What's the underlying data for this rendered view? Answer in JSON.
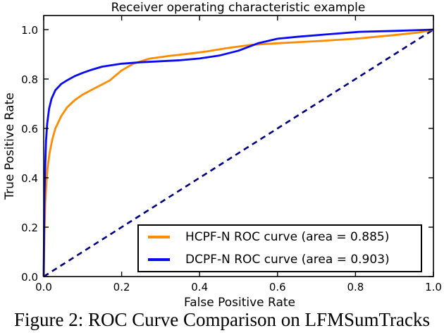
{
  "figure": {
    "caption": "Figure 2: ROC Curve Comparison on LFMSumTracks"
  },
  "chart_data": {
    "type": "line",
    "title": "Receiver operating characteristic example",
    "xlabel": "False Positive Rate",
    "ylabel": "True Positive Rate",
    "xlim": [
      0.0,
      1.0
    ],
    "ylim": [
      0.0,
      1.057
    ],
    "x_ticks": [
      "0.0",
      "0.2",
      "0.4",
      "0.6",
      "0.8",
      "1.0"
    ],
    "y_ticks": [
      "0.0",
      "0.2",
      "0.4",
      "0.6",
      "0.8",
      "1.0"
    ],
    "grid": false,
    "legend_position": "lower right",
    "axis_color": "#000000",
    "background": "#ffffff",
    "series": [
      {
        "name": "HCPF-N ROC curve (area = 0.885)",
        "area": 0.885,
        "color": "#ff8c00",
        "style": "solid",
        "x": [
          0,
          0.002,
          0.004,
          0.007,
          0.01,
          0.015,
          0.022,
          0.03,
          0.045,
          0.06,
          0.08,
          0.1,
          0.13,
          0.15,
          0.17,
          0.2,
          0.23,
          0.27,
          0.32,
          0.37,
          0.42,
          0.47,
          0.53,
          0.6,
          0.7,
          0.8,
          0.9,
          0.96,
          1.0
        ],
        "y": [
          0,
          0.18,
          0.3,
          0.38,
          0.44,
          0.5,
          0.555,
          0.6,
          0.65,
          0.685,
          0.715,
          0.737,
          0.762,
          0.778,
          0.795,
          0.835,
          0.862,
          0.882,
          0.893,
          0.902,
          0.912,
          0.925,
          0.938,
          0.945,
          0.953,
          0.963,
          0.978,
          0.988,
          1.0
        ]
      },
      {
        "name": "DCPF-N ROC curve (area = 0.903)",
        "area": 0.903,
        "color": "#0a0af2",
        "style": "solid",
        "x": [
          0,
          0.001,
          0.002,
          0.004,
          0.006,
          0.009,
          0.014,
          0.02,
          0.03,
          0.045,
          0.06,
          0.08,
          0.1,
          0.12,
          0.15,
          0.2,
          0.25,
          0.3,
          0.35,
          0.4,
          0.45,
          0.5,
          0.55,
          0.6,
          0.65,
          0.72,
          0.81,
          0.9,
          1.0
        ],
        "y": [
          0,
          0.2,
          0.33,
          0.45,
          0.55,
          0.62,
          0.68,
          0.72,
          0.755,
          0.78,
          0.795,
          0.812,
          0.825,
          0.836,
          0.85,
          0.862,
          0.868,
          0.872,
          0.876,
          0.883,
          0.895,
          0.915,
          0.945,
          0.963,
          0.971,
          0.98,
          0.991,
          0.995,
          1.0
        ]
      },
      {
        "name": "chance-diagonal",
        "color": "#000080",
        "style": "dashed",
        "x": [
          0,
          1
        ],
        "y": [
          0,
          1
        ]
      }
    ]
  }
}
